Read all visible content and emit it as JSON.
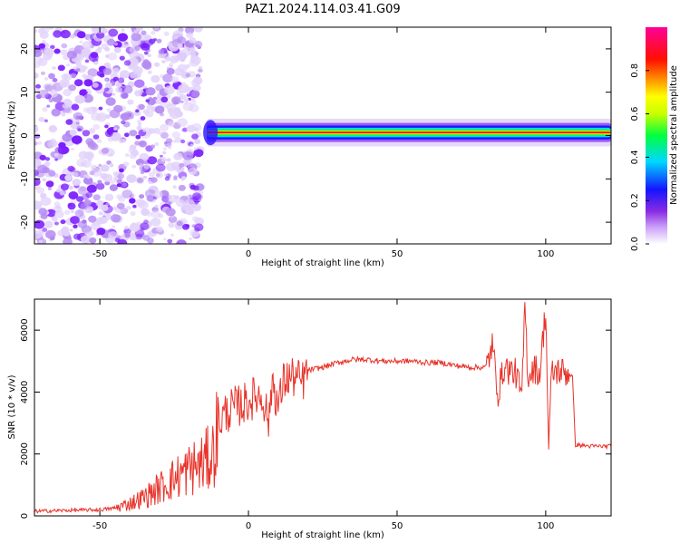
{
  "title": "PAZ1.2024.114.03.41.G09",
  "colors": {
    "snr_line": "#e8332a",
    "noise": "#7a2cff",
    "axis": "#000000"
  },
  "chart_data": [
    {
      "type": "heatmap",
      "title": "PAZ1.2024.114.03.41.G09",
      "xlabel": "Height of straight line (km)",
      "ylabel": "Frequency (Hz)",
      "xlim": [
        -72,
        122
      ],
      "ylim": [
        -25,
        25
      ],
      "x_ticks": [
        -50,
        0,
        50,
        100
      ],
      "y_ticks": [
        -20,
        -10,
        0,
        10,
        20
      ],
      "description_values": {
        "noise_region_x": [
          -72,
          -16
        ],
        "signal_band_x": [
          -14,
          122
        ],
        "signal_frequency_hz": 0.7,
        "signal_band_halfwidth_hz": 2
      },
      "colorbar": {
        "label": "Normalized spectral amplitude",
        "range": [
          0.0,
          1.0
        ],
        "ticks": [
          0.0,
          0.2,
          0.4,
          0.6,
          0.8
        ],
        "tick_labels": [
          "0.0",
          "0.2",
          "0.4",
          "0.6",
          "0.8"
        ],
        "colormap": [
          "#ffffff",
          "#a020f0",
          "#1010ff",
          "#00e0ff",
          "#00ff00",
          "#ffff00",
          "#ff8000",
          "#ff0000",
          "#ff0090"
        ]
      },
      "grid": false
    },
    {
      "type": "line",
      "xlabel": "Height of straight line (km)",
      "ylabel": "SNR (10 * v/v)",
      "xlim": [
        -72,
        122
      ],
      "ylim": [
        0,
        7000
      ],
      "x_ticks": [
        -50,
        0,
        50,
        100
      ],
      "y_ticks": [
        0,
        2000,
        4000,
        6000
      ],
      "series": [
        {
          "x": [
            -72,
            -60,
            -50,
            -45,
            -40,
            -35,
            -30,
            -25,
            -20,
            -15,
            -12,
            -10,
            -8,
            -5,
            -2,
            0,
            3,
            5,
            7,
            8,
            10,
            12,
            15,
            18,
            20,
            25,
            30,
            35,
            40,
            45,
            50,
            55,
            60,
            65,
            70,
            75,
            80,
            82,
            84,
            86,
            88,
            90,
            92,
            93,
            94,
            96,
            98,
            100,
            101,
            102,
            104,
            106,
            108,
            109,
            110,
            115,
            122
          ],
          "y": [
            150,
            180,
            200,
            250,
            400,
            600,
            900,
            1200,
            1500,
            1700,
            2000,
            3000,
            3300,
            3500,
            3600,
            3700,
            3900,
            3800,
            3000,
            4500,
            3500,
            4400,
            4500,
            4300,
            4700,
            4800,
            4950,
            5050,
            5050,
            5000,
            5000,
            5000,
            4950,
            4950,
            4850,
            4800,
            4800,
            5500,
            4000,
            4800,
            4700,
            4600,
            3800,
            6900,
            4500,
            4800,
            4600,
            6700,
            2200,
            4600,
            4700,
            4650,
            4600,
            4500,
            2300,
            2250,
            2250
          ]
        }
      ],
      "grid": false
    }
  ]
}
